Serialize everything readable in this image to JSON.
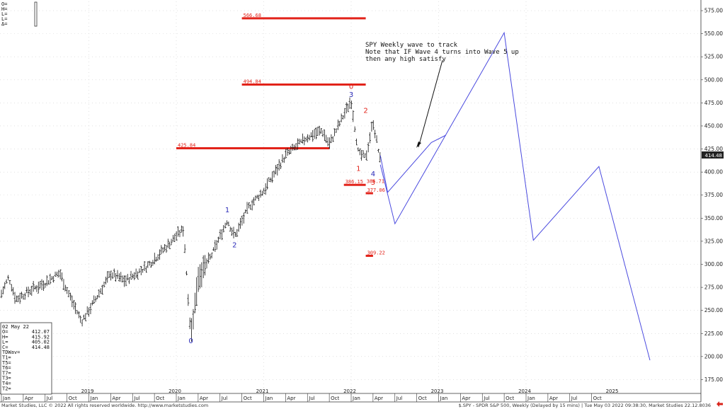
{
  "ohlc_panel": {
    "lines": [
      "O=",
      "H=",
      "L=",
      "L=",
      "Δ="
    ]
  },
  "data_window": {
    "date": "02 May 22",
    "rows": [
      {
        "label": "O=",
        "value": "412.07"
      },
      {
        "label": "H=",
        "value": "415.92"
      },
      {
        "label": "L=",
        "value": "405.02"
      },
      {
        "label": "C=",
        "value": "414.48"
      },
      {
        "label": "TDWav=",
        "value": ""
      },
      {
        "label": "T1=",
        "value": ""
      },
      {
        "label": "T5=",
        "value": ""
      },
      {
        "label": "T6=",
        "value": ""
      },
      {
        "label": "T7=",
        "value": ""
      },
      {
        "label": "T3=",
        "value": ""
      },
      {
        "label": "T4=",
        "value": ""
      },
      {
        "label": "T2=",
        "value": ""
      }
    ]
  },
  "annotation_text": [
    "SPY Weekly wave to track",
    "Note that IF Wave 4 turns into Wave 5 up",
    "then any high satisfy"
  ],
  "price_badge": "414.48",
  "footer": {
    "left": "Market Studies, LLC © 2022 All rights reserved worldwide. http://www.marketstudies.com",
    "right": "$.SPY - SPDR S&P 500, Weekly (Delayed by 15 mins) | Tue May 03 2022 09:38:30, Market Studies 22.12.8036"
  },
  "colors": {
    "bars": "#111111",
    "level_lines": "#e2231a",
    "projection": "#4a4adf",
    "wave_blue": "#2b2bb8",
    "wave_red": "#e2231a",
    "badge_bg": "#222222",
    "badge_text": "#ffffff",
    "arrow_icon": "#d9241b"
  },
  "chart_data": {
    "type": "ohlc",
    "title": "",
    "ylim": [
      160,
      585
    ],
    "y_ticks": [
      175,
      200,
      225,
      250,
      275,
      300,
      325,
      350,
      375,
      400,
      425,
      450,
      475,
      500,
      525,
      550,
      575
    ],
    "y_tick_labels": [
      "175.00",
      "200.00",
      "225.00",
      "250.00",
      "275.00",
      "300.00",
      "325.00",
      "350.00",
      "375.00",
      "400.00",
      "425.00",
      "450.00",
      "475.00",
      "500.00",
      "525.00",
      "550.00",
      "575.00"
    ],
    "x_month_labels": [
      "Jan",
      "Apr",
      "Jul",
      "Oct",
      "Jan",
      "Apr",
      "Jul",
      "Oct",
      "Jan",
      "Apr",
      "Jul",
      "Oct",
      "Jan",
      "Apr",
      "Jul",
      "Oct",
      "Jan",
      "Apr",
      "Jul",
      "Oct",
      "Jan",
      "Apr",
      "Jul",
      "Oct",
      "Jan",
      "Apr",
      "Jul",
      "Oct"
    ],
    "x_year_labels": [
      "2019",
      "2020",
      "2021",
      "2022",
      "2023",
      "2024",
      "2025"
    ],
    "x_start": "2018-01",
    "x_end": "2025-12",
    "price_path": [
      [
        "2018-01",
        268
      ],
      [
        "2018-02",
        286
      ],
      [
        "2018-03",
        262
      ],
      [
        "2018-05",
        272
      ],
      [
        "2018-07",
        280
      ],
      [
        "2018-09",
        291
      ],
      [
        "2018-10",
        272
      ],
      [
        "2018-12",
        238
      ],
      [
        "2019-01",
        250
      ],
      [
        "2019-04",
        290
      ],
      [
        "2019-06",
        282
      ],
      [
        "2019-09",
        298
      ],
      [
        "2019-12",
        322
      ],
      [
        "2020-01",
        331
      ],
      [
        "2020-02",
        338
      ],
      [
        "2020-03",
        222
      ],
      [
        "2020-04",
        285
      ],
      [
        "2020-06",
        312
      ],
      [
        "2020-08",
        348
      ],
      [
        "2020-09",
        330
      ],
      [
        "2020-11",
        363
      ],
      [
        "2021-01",
        380
      ],
      [
        "2021-04",
        418
      ],
      [
        "2021-07",
        438
      ],
      [
        "2021-09",
        445
      ],
      [
        "2021-10",
        430
      ],
      [
        "2022-01",
        478
      ],
      [
        "2022-02",
        420
      ],
      [
        "2022-03",
        415
      ],
      [
        "2022-04",
        455
      ],
      [
        "2022-05",
        412
      ]
    ],
    "horizontal_levels": [
      {
        "label": "566.68",
        "value": 566.68,
        "from": "2020-10",
        "to": "2022-03"
      },
      {
        "label": "494.84",
        "value": 494.84,
        "from": "2020-10",
        "to": "2022-03"
      },
      {
        "label": "425.84",
        "value": 425.84,
        "from": "2020-01",
        "to": "2021-10"
      },
      {
        "label": "386.15",
        "value": 386.15,
        "from": "2021-12",
        "to": "2022-03"
      },
      {
        "label": "386.71",
        "value": 386.71,
        "from": "2021-12",
        "to": "2022-03"
      },
      {
        "label": "377.06",
        "value": 377.06,
        "from": "2022-03",
        "to": "2022-04"
      },
      {
        "label": "309.22",
        "value": 309.22,
        "from": "2022-03",
        "to": "2022-04"
      }
    ],
    "projection_paths": [
      [
        [
          "2022-05",
          418
        ],
        [
          "2022-06",
          378
        ],
        [
          "2022-12",
          432
        ],
        [
          "2023-02",
          440
        ]
      ],
      [
        [
          "2022-05",
          408
        ],
        [
          "2022-07",
          344
        ],
        [
          "2023-10",
          551
        ],
        [
          "2024-02",
          326
        ],
        [
          "2024-11",
          406
        ],
        [
          "2025-06",
          196
        ]
      ]
    ],
    "wave_labels": [
      {
        "text": "0",
        "x": "2020-03",
        "y": 222,
        "color": "blue",
        "pos": "below"
      },
      {
        "text": "2",
        "x": "2020-09",
        "y": 326,
        "color": "blue",
        "pos": "below"
      },
      {
        "text": "1",
        "x": "2020-08",
        "y": 354,
        "color": "blue",
        "pos": "above"
      },
      {
        "text": "0",
        "x": "2022-01",
        "y": 488,
        "color": "red",
        "pos": "above"
      },
      {
        "text": "3",
        "x": "2022-01",
        "y": 479,
        "color": "blue",
        "pos": "above"
      },
      {
        "text": "1",
        "x": "2022-02",
        "y": 409,
        "color": "red",
        "pos": "below"
      },
      {
        "text": "2",
        "x": "2022-03",
        "y": 462,
        "color": "red",
        "pos": "above"
      },
      {
        "text": "4",
        "x": "2022-04",
        "y": 403,
        "color": "blue",
        "pos": "below"
      },
      {
        "text": "3",
        "x": "2022-04",
        "y": 394,
        "color": "red",
        "pos": "below"
      }
    ]
  }
}
